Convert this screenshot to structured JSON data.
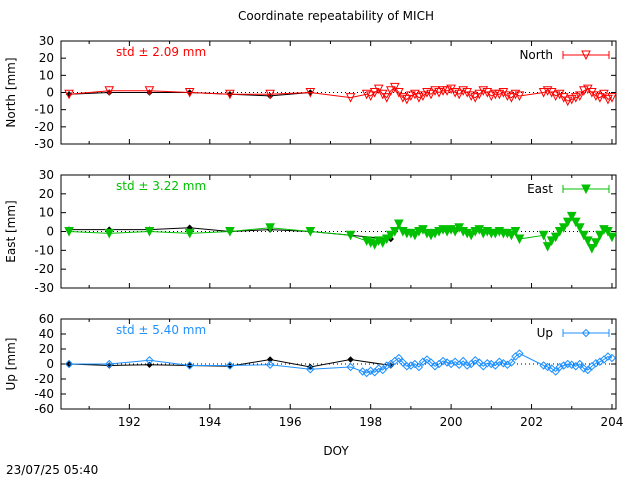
{
  "title": "Coordinate repeatability of MICH",
  "timestamp": "23/07/25 05:40",
  "x_axis": {
    "label": "DOY",
    "range": [
      190.3,
      204.1
    ],
    "ticks": [
      192,
      194,
      196,
      198,
      200,
      202,
      204
    ]
  },
  "chart_data": [
    {
      "type": "line",
      "ylabel": "North [mm]",
      "ylim": [
        -30,
        30
      ],
      "yticks": [
        -30,
        -20,
        -10,
        0,
        10,
        20,
        30
      ],
      "grid": false,
      "legend_position": "top-right",
      "annotation": "std ± 2.09 mm",
      "color": "#ff0000",
      "series": [
        {
          "name": "North",
          "marker": "triangle-down-open",
          "x": [
            190.5,
            191.5,
            192.5,
            193.5,
            194.5,
            195.5,
            196.5,
            197.5,
            197.9,
            198.0,
            198.1,
            198.2,
            198.3,
            198.4,
            198.5,
            198.6,
            198.7,
            198.8,
            198.9,
            199.0,
            199.1,
            199.2,
            199.3,
            199.4,
            199.5,
            199.6,
            199.7,
            199.8,
            199.9,
            200.0,
            200.1,
            200.2,
            200.3,
            200.4,
            200.5,
            200.6,
            200.7,
            200.8,
            200.9,
            201.0,
            201.1,
            201.2,
            201.3,
            201.4,
            201.5,
            201.6,
            201.7,
            202.3,
            202.4,
            202.5,
            202.6,
            202.7,
            202.8,
            202.9,
            203.0,
            203.1,
            203.2,
            203.3,
            203.4,
            203.5,
            203.6,
            203.7,
            203.8,
            203.9,
            204.0
          ],
          "y": [
            -1,
            1,
            1,
            0,
            -1,
            -1,
            0,
            -3,
            -1,
            -2,
            0,
            2,
            -1,
            -3,
            1,
            3,
            0,
            -3,
            -4,
            -2,
            -1,
            -3,
            -2,
            0,
            -1,
            1,
            0,
            1,
            1,
            2,
            0,
            -1,
            1,
            0,
            -2,
            -3,
            -1,
            1,
            0,
            -2,
            -1,
            -1,
            0,
            -2,
            -3,
            -1,
            -2,
            0,
            1,
            0,
            -2,
            -1,
            -3,
            -5,
            -4,
            -3,
            -2,
            1,
            2,
            0,
            -2,
            -3,
            -1,
            -4,
            -3
          ]
        },
        {
          "name": "",
          "marker": "diamond-filled",
          "color": "#000000",
          "x": [
            190.5,
            191.5,
            192.5,
            193.5,
            194.5,
            195.5,
            196.5
          ],
          "y": [
            -1,
            0,
            0,
            0,
            -1,
            -2,
            0
          ]
        }
      ]
    },
    {
      "type": "line",
      "ylabel": "East [mm]",
      "ylim": [
        -30,
        30
      ],
      "yticks": [
        -30,
        -20,
        -10,
        0,
        10,
        20,
        30
      ],
      "grid": false,
      "legend_position": "top-right",
      "annotation": "std ± 3.22 mm",
      "color": "#00c000",
      "series": [
        {
          "name": "East",
          "marker": "triangle-down-filled",
          "x": [
            190.5,
            191.5,
            192.5,
            193.5,
            194.5,
            195.5,
            196.5,
            197.5,
            197.9,
            198.0,
            198.1,
            198.2,
            198.3,
            198.4,
            198.5,
            198.6,
            198.7,
            198.8,
            198.9,
            199.0,
            199.1,
            199.2,
            199.3,
            199.4,
            199.5,
            199.6,
            199.7,
            199.8,
            199.9,
            200.0,
            200.1,
            200.2,
            200.3,
            200.4,
            200.5,
            200.6,
            200.7,
            200.8,
            200.9,
            201.0,
            201.1,
            201.2,
            201.3,
            201.4,
            201.5,
            201.6,
            201.7,
            202.3,
            202.4,
            202.5,
            202.6,
            202.7,
            202.8,
            202.9,
            203.0,
            203.1,
            203.2,
            203.3,
            203.4,
            203.5,
            203.6,
            203.7,
            203.8,
            203.9,
            204.0
          ],
          "y": [
            0,
            -1,
            0,
            -1,
            0,
            2,
            0,
            -2,
            -5,
            -6,
            -7,
            -5,
            -6,
            -4,
            -2,
            0,
            4,
            0,
            -1,
            -1,
            -2,
            0,
            1,
            -1,
            -2,
            -1,
            0,
            1,
            0,
            1,
            0,
            2,
            0,
            -1,
            -2,
            0,
            1,
            -1,
            0,
            -1,
            -1,
            0,
            -1,
            -1,
            -2,
            0,
            -4,
            -2,
            -8,
            -5,
            -3,
            0,
            2,
            5,
            8,
            5,
            2,
            -2,
            -5,
            -9,
            -6,
            -2,
            1,
            0,
            -3
          ]
        },
        {
          "name": "",
          "marker": "diamond-filled",
          "color": "#000000",
          "x": [
            190.5,
            191.5,
            192.5,
            193.5,
            194.5,
            195.5,
            196.5,
            197.5,
            198.5
          ],
          "y": [
            1,
            1,
            1,
            2,
            0,
            1,
            0,
            -2,
            -4
          ]
        }
      ]
    },
    {
      "type": "line",
      "ylabel": "Up [mm]",
      "ylim": [
        -60,
        60
      ],
      "yticks": [
        -60,
        -40,
        -20,
        0,
        20,
        40,
        60
      ],
      "grid": false,
      "legend_position": "top-right",
      "annotation": "std ± 5.40 mm",
      "color": "#1e90ff",
      "series": [
        {
          "name": "Up",
          "marker": "diamond-open",
          "x": [
            190.5,
            191.5,
            192.5,
            193.5,
            194.5,
            195.5,
            196.5,
            197.5,
            197.8,
            197.9,
            198.0,
            198.1,
            198.2,
            198.3,
            198.4,
            198.5,
            198.6,
            198.7,
            198.8,
            198.9,
            199.0,
            199.1,
            199.2,
            199.3,
            199.4,
            199.5,
            199.6,
            199.7,
            199.8,
            199.9,
            200.0,
            200.1,
            200.2,
            200.3,
            200.4,
            200.5,
            200.6,
            200.7,
            200.8,
            200.9,
            201.0,
            201.1,
            201.2,
            201.3,
            201.4,
            201.5,
            201.6,
            201.7,
            202.3,
            202.4,
            202.5,
            202.6,
            202.7,
            202.8,
            202.9,
            203.0,
            203.1,
            203.2,
            203.3,
            203.4,
            203.5,
            203.6,
            203.7,
            203.8,
            203.9,
            204.0
          ],
          "y": [
            0,
            0,
            5,
            -2,
            -2,
            -1,
            -7,
            -4,
            -10,
            -12,
            -9,
            -11,
            -6,
            -8,
            -2,
            0,
            4,
            8,
            2,
            -3,
            -2,
            0,
            -4,
            3,
            6,
            2,
            -3,
            0,
            4,
            2,
            0,
            3,
            -1,
            4,
            -2,
            0,
            5,
            2,
            -3,
            1,
            0,
            -2,
            3,
            1,
            -1,
            2,
            10,
            14,
            -2,
            -4,
            -6,
            -10,
            -4,
            -2,
            0,
            -1,
            -3,
            0,
            -6,
            -8,
            -3,
            1,
            3,
            6,
            10,
            8
          ]
        },
        {
          "name": "",
          "marker": "diamond-filled",
          "color": "#000000",
          "x": [
            190.5,
            191.5,
            192.5,
            193.5,
            194.5,
            195.5,
            196.5,
            197.5,
            198.5
          ],
          "y": [
            0,
            -2,
            -1,
            -2,
            -3,
            6,
            -4,
            6,
            -2
          ]
        }
      ]
    }
  ]
}
